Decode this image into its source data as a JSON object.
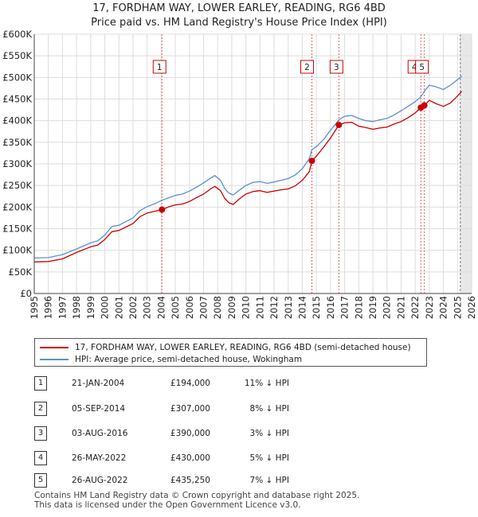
{
  "chart_data": {
    "type": "line",
    "title": "17, FORDHAM WAY, LOWER EARLEY, READING, RG6 4BD",
    "subtitle": "Price paid vs. HM Land Registry's House Price Index (HPI)",
    "x_range": [
      1995,
      2026
    ],
    "y_range": [
      0,
      600000
    ],
    "y_ticks": [
      0,
      50000,
      100000,
      150000,
      200000,
      250000,
      300000,
      350000,
      400000,
      450000,
      500000,
      550000,
      600000
    ],
    "y_tick_labels": [
      "£0",
      "£50K",
      "£100K",
      "£150K",
      "£200K",
      "£250K",
      "£300K",
      "£350K",
      "£400K",
      "£450K",
      "£500K",
      "£550K",
      "£600K"
    ],
    "x_ticks": [
      1995,
      1996,
      1997,
      1998,
      1999,
      2000,
      2001,
      2002,
      2003,
      2004,
      2005,
      2006,
      2007,
      2008,
      2009,
      2010,
      2011,
      2012,
      2013,
      2014,
      2015,
      2016,
      2017,
      2018,
      2019,
      2020,
      2021,
      2022,
      2023,
      2024,
      2025,
      2026
    ],
    "x_tick_labels": [
      "1995",
      "1996",
      "1997",
      "1998",
      "1999",
      "2000",
      "2001",
      "2002",
      "2003",
      "2004",
      "2005",
      "2006",
      "2007",
      "2008",
      "2009",
      "2010",
      "2011",
      "2012",
      "2013",
      "2014",
      "2015",
      "2016",
      "2017",
      "2018",
      "2019",
      "2020",
      "2021",
      "2022",
      "2023",
      "2024",
      "2025",
      "2026"
    ],
    "future_from": 2025.2,
    "series": [
      {
        "name": "17, FORDHAM WAY, LOWER EARLEY, READING, RG6 4BD (semi-detached house)",
        "color": "#cc0000",
        "points": [
          [
            1995.0,
            73000
          ],
          [
            1996.0,
            74000
          ],
          [
            1997.0,
            80000
          ],
          [
            1998.0,
            95000
          ],
          [
            1999.0,
            108000
          ],
          [
            1999.5,
            112000
          ],
          [
            2000.0,
            125000
          ],
          [
            2000.5,
            143000
          ],
          [
            2001.0,
            146000
          ],
          [
            2002.0,
            162000
          ],
          [
            2002.5,
            178000
          ],
          [
            2003.0,
            186000
          ],
          [
            2003.5,
            190000
          ],
          [
            2004.05,
            194000
          ],
          [
            2004.5,
            200000
          ],
          [
            2005.0,
            205000
          ],
          [
            2005.5,
            207000
          ],
          [
            2006.0,
            213000
          ],
          [
            2006.5,
            222000
          ],
          [
            2007.0,
            230000
          ],
          [
            2007.5,
            242000
          ],
          [
            2007.8,
            248000
          ],
          [
            2008.2,
            238000
          ],
          [
            2008.5,
            220000
          ],
          [
            2008.8,
            210000
          ],
          [
            2009.1,
            206000
          ],
          [
            2009.5,
            218000
          ],
          [
            2010.0,
            230000
          ],
          [
            2010.5,
            236000
          ],
          [
            2011.0,
            238000
          ],
          [
            2011.5,
            234000
          ],
          [
            2012.0,
            237000
          ],
          [
            2012.5,
            240000
          ],
          [
            2013.0,
            242000
          ],
          [
            2013.5,
            249000
          ],
          [
            2014.0,
            262000
          ],
          [
            2014.5,
            282000
          ],
          [
            2014.68,
            307000
          ],
          [
            2015.0,
            318000
          ],
          [
            2015.5,
            338000
          ],
          [
            2016.0,
            360000
          ],
          [
            2016.59,
            390000
          ],
          [
            2017.0,
            395000
          ],
          [
            2017.5,
            396000
          ],
          [
            2018.0,
            387000
          ],
          [
            2018.5,
            384000
          ],
          [
            2019.0,
            380000
          ],
          [
            2019.5,
            383000
          ],
          [
            2020.0,
            385000
          ],
          [
            2020.5,
            392000
          ],
          [
            2021.0,
            398000
          ],
          [
            2021.5,
            407000
          ],
          [
            2022.0,
            418000
          ],
          [
            2022.4,
            430000
          ],
          [
            2022.65,
            435250
          ],
          [
            2023.0,
            447000
          ],
          [
            2023.5,
            439000
          ],
          [
            2024.0,
            433000
          ],
          [
            2024.5,
            441000
          ],
          [
            2025.0,
            457000
          ],
          [
            2025.3,
            468000
          ]
        ]
      },
      {
        "name": "HPI: Average price, semi-detached house, Wokingham",
        "color": "#5b8fd0",
        "points": [
          [
            1995.0,
            82000
          ],
          [
            1996.0,
            83000
          ],
          [
            1997.0,
            90000
          ],
          [
            1998.0,
            103000
          ],
          [
            1999.0,
            117000
          ],
          [
            1999.5,
            122000
          ],
          [
            2000.0,
            135000
          ],
          [
            2000.5,
            155000
          ],
          [
            2001.0,
            158000
          ],
          [
            2002.0,
            175000
          ],
          [
            2002.5,
            192000
          ],
          [
            2003.0,
            201000
          ],
          [
            2003.5,
            207000
          ],
          [
            2004.0,
            215000
          ],
          [
            2004.5,
            221000
          ],
          [
            2005.0,
            227000
          ],
          [
            2005.5,
            230000
          ],
          [
            2006.0,
            237000
          ],
          [
            2006.5,
            246000
          ],
          [
            2007.0,
            256000
          ],
          [
            2007.5,
            267000
          ],
          [
            2007.8,
            273000
          ],
          [
            2008.2,
            262000
          ],
          [
            2008.5,
            243000
          ],
          [
            2008.8,
            232000
          ],
          [
            2009.1,
            228000
          ],
          [
            2009.5,
            238000
          ],
          [
            2010.0,
            250000
          ],
          [
            2010.5,
            257000
          ],
          [
            2011.0,
            259000
          ],
          [
            2011.5,
            255000
          ],
          [
            2012.0,
            258000
          ],
          [
            2012.5,
            262000
          ],
          [
            2013.0,
            266000
          ],
          [
            2013.5,
            274000
          ],
          [
            2014.0,
            289000
          ],
          [
            2014.5,
            312000
          ],
          [
            2014.68,
            333000
          ],
          [
            2015.0,
            340000
          ],
          [
            2015.5,
            356000
          ],
          [
            2016.0,
            378000
          ],
          [
            2016.59,
            402000
          ],
          [
            2017.0,
            410000
          ],
          [
            2017.5,
            412000
          ],
          [
            2018.0,
            405000
          ],
          [
            2018.5,
            400000
          ],
          [
            2019.0,
            398000
          ],
          [
            2019.5,
            402000
          ],
          [
            2020.0,
            405000
          ],
          [
            2020.5,
            413000
          ],
          [
            2021.0,
            423000
          ],
          [
            2021.5,
            433000
          ],
          [
            2022.0,
            444000
          ],
          [
            2022.4,
            455000
          ],
          [
            2022.65,
            468000
          ],
          [
            2023.0,
            482000
          ],
          [
            2023.5,
            478000
          ],
          [
            2024.0,
            472000
          ],
          [
            2024.5,
            482000
          ],
          [
            2025.0,
            495000
          ],
          [
            2025.3,
            503000
          ]
        ]
      }
    ],
    "transactions": [
      {
        "num": "1",
        "x": 2004.05,
        "price": 194000
      },
      {
        "num": "2",
        "x": 2014.68,
        "price": 307000
      },
      {
        "num": "3",
        "x": 2016.59,
        "price": 390000
      },
      {
        "num": "4",
        "x": 2022.4,
        "price": 430000
      },
      {
        "num": "5",
        "x": 2022.65,
        "price": 435250
      }
    ]
  },
  "header": {
    "title": "17, FORDHAM WAY, LOWER EARLEY, READING, RG6 4BD",
    "subtitle": "Price paid vs. HM Land Registry's House Price Index (HPI)"
  },
  "legend": {
    "property_label": "17, FORDHAM WAY, LOWER EARLEY, READING, RG6 4BD (semi-detached house)",
    "hpi_label": "HPI: Average price, semi-detached house, Wokingham",
    "property_color": "#cc0000",
    "hpi_color": "#5b8fd0"
  },
  "table": {
    "rows": [
      {
        "num": "1",
        "date": "21-JAN-2004",
        "price": "£194,000",
        "hpi": "11% ↓ HPI"
      },
      {
        "num": "2",
        "date": "05-SEP-2014",
        "price": "£307,000",
        "hpi": "8% ↓ HPI"
      },
      {
        "num": "3",
        "date": "03-AUG-2016",
        "price": "£390,000",
        "hpi": "3% ↓ HPI"
      },
      {
        "num": "4",
        "date": "26-MAY-2022",
        "price": "£430,000",
        "hpi": "5% ↓ HPI"
      },
      {
        "num": "5",
        "date": "26-AUG-2022",
        "price": "£435,250",
        "hpi": "7% ↓ HPI"
      }
    ]
  },
  "footer": {
    "line1": "Contains HM Land Registry data © Crown copyright and database right 2025.",
    "line2": "This data is licensed under the Open Government Licence v3.0."
  }
}
